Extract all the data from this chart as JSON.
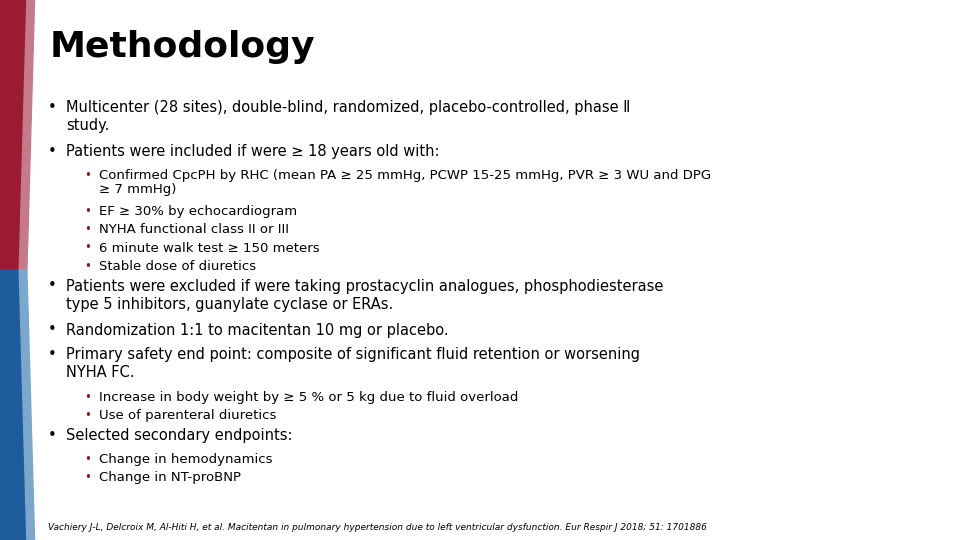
{
  "title": "Methodology",
  "title_fontsize": 26,
  "background_color": "#ffffff",
  "red_color": "#9B1B30",
  "blue_color": "#1F5C9E",
  "light_red": "#C47A8A",
  "light_blue": "#7BA7CC",
  "text_color": "#000000",
  "sub_bullet_color": "#8B1A1A",
  "body_fontsize": 10.5,
  "sub_fontsize": 9.5,
  "bullet_char": "•",
  "content": [
    {
      "level": 1,
      "text": "Multicenter (28 sites), double-blind, randomized, placebo-controlled, phase Ⅱ\nstudy.",
      "lines": 2
    },
    {
      "level": 1,
      "text": "Patients were included if were ≥ 18 years old with:",
      "lines": 1
    },
    {
      "level": 2,
      "text": "Confirmed CpcPH by RHC (mean PA ≥ 25 mmHg, PCWP 15-25 mmHg, PVR ≥ 3 WU and DPG\n≥ 7 mmHg)",
      "lines": 2
    },
    {
      "level": 2,
      "text": "EF ≥ 30% by echocardiogram",
      "lines": 1
    },
    {
      "level": 2,
      "text": "NYHA functional class II or III",
      "lines": 1
    },
    {
      "level": 2,
      "text": "6 minute walk test ≥ 150 meters",
      "lines": 1
    },
    {
      "level": 2,
      "text": "Stable dose of diuretics",
      "lines": 1
    },
    {
      "level": 1,
      "text": "Patients were excluded if were taking prostacyclin analogues, phosphodiesterase\ntype 5 inhibitors, guanylate cyclase or ERAs.",
      "lines": 2
    },
    {
      "level": 1,
      "text": "Randomization 1:1 to macitentan 10 mg or placebo.",
      "lines": 1
    },
    {
      "level": 1,
      "text": "Primary safety end point: composite of significant fluid retention or worsening\nNYHA FC.",
      "lines": 2
    },
    {
      "level": 2,
      "text": "Increase in body weight by ≥ 5 % or 5 kg due to fluid overload",
      "lines": 1
    },
    {
      "level": 2,
      "text": "Use of parenteral diuretics",
      "lines": 1
    },
    {
      "level": 1,
      "text": "Selected secondary endpoints:",
      "lines": 1
    },
    {
      "level": 2,
      "text": "Change in hemodynamics",
      "lines": 1
    },
    {
      "level": 2,
      "text": "Change in NT-proBNP",
      "lines": 1
    }
  ],
  "footnote": "Vachiery J-L, Delcroix M, Al-Hiti H, et al. Macitentan in pulmonary hypertension due to left ventricular dysfunction. Eur Respir J 2018; 51: 1701886"
}
